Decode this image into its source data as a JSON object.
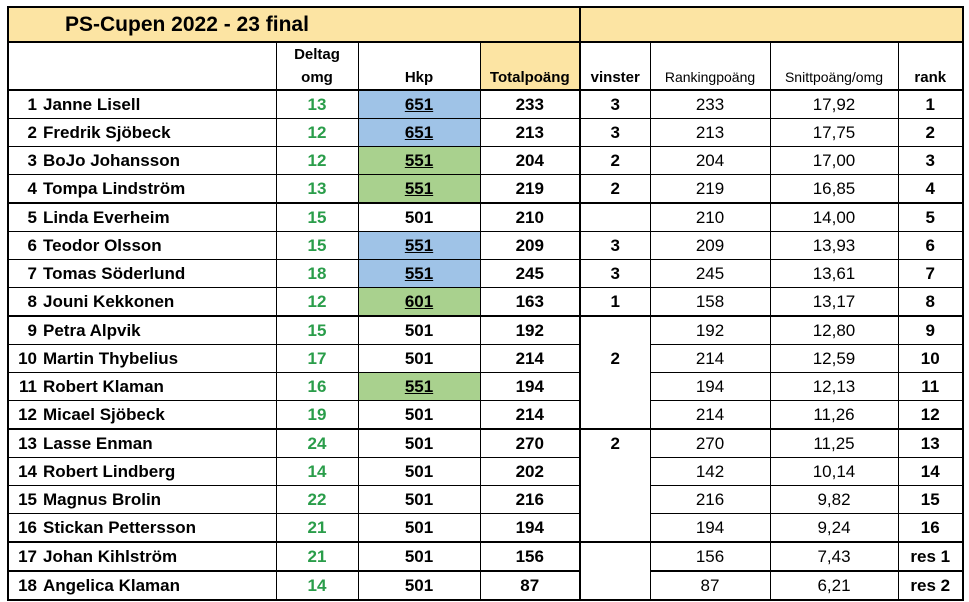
{
  "title": "PS-Cupen 2022 - 23 final",
  "headers": {
    "deltag_line1": "Deltag",
    "deltag_line2": "omg",
    "hkp": "Hkp",
    "total": "Totalpoäng",
    "vinster": "vinster",
    "ranking": "Rankingpoäng",
    "snitt": "Snittpoäng/omg",
    "rank": "rank"
  },
  "rows": [
    {
      "num": "1",
      "name": "Janne Lisell",
      "omg": "13",
      "hkp": "651",
      "total": "233",
      "vinster": "3",
      "ranking": "233",
      "snitt": "17,92",
      "rank": "1"
    },
    {
      "num": "2",
      "name": "Fredrik Sjöbeck",
      "omg": "12",
      "hkp": "651",
      "total": "213",
      "vinster": "3",
      "ranking": "213",
      "snitt": "17,75",
      "rank": "2"
    },
    {
      "num": "3",
      "name": "BoJo Johansson",
      "omg": "12",
      "hkp": "551",
      "total": "204",
      "vinster": "2",
      "ranking": "204",
      "snitt": "17,00",
      "rank": "3"
    },
    {
      "num": "4",
      "name": "Tompa Lindström",
      "omg": "13",
      "hkp": "551",
      "total": "219",
      "vinster": "2",
      "ranking": "219",
      "snitt": "16,85",
      "rank": "4"
    },
    {
      "num": "5",
      "name": "Linda Everheim",
      "omg": "15",
      "hkp": "501",
      "total": "210",
      "vinster": "",
      "ranking": "210",
      "snitt": "14,00",
      "rank": "5"
    },
    {
      "num": "6",
      "name": "Teodor Olsson",
      "omg": "15",
      "hkp": "551",
      "total": "209",
      "vinster": "3",
      "ranking": "209",
      "snitt": "13,93",
      "rank": "6"
    },
    {
      "num": "7",
      "name": "Tomas Söderlund",
      "omg": "18",
      "hkp": "551",
      "total": "245",
      "vinster": "3",
      "ranking": "245",
      "snitt": "13,61",
      "rank": "7"
    },
    {
      "num": "8",
      "name": "Jouni Kekkonen",
      "omg": "12",
      "hkp": "601",
      "total": "163",
      "vinster": "1",
      "ranking": "158",
      "snitt": "13,17",
      "rank": "8"
    },
    {
      "num": "9",
      "name": "Petra Alpvik",
      "omg": "15",
      "hkp": "501",
      "total": "192",
      "vinster": "",
      "ranking": "192",
      "snitt": "12,80",
      "rank": "9"
    },
    {
      "num": "10",
      "name": "Martin Thybelius",
      "omg": "17",
      "hkp": "501",
      "total": "214",
      "vinster": "2",
      "ranking": "214",
      "snitt": "12,59",
      "rank": "10"
    },
    {
      "num": "11",
      "name": "Robert Klaman",
      "omg": "16",
      "hkp": "551",
      "total": "194",
      "vinster": "",
      "ranking": "194",
      "snitt": "12,13",
      "rank": "11"
    },
    {
      "num": "12",
      "name": "Micael Sjöbeck",
      "omg": "19",
      "hkp": "501",
      "total": "214",
      "vinster": "",
      "ranking": "214",
      "snitt": "11,26",
      "rank": "12"
    },
    {
      "num": "13",
      "name": "Lasse Enman",
      "omg": "24",
      "hkp": "501",
      "total": "270",
      "vinster": "2",
      "ranking": "270",
      "snitt": "11,25",
      "rank": "13"
    },
    {
      "num": "14",
      "name": "Robert Lindberg",
      "omg": "14",
      "hkp": "501",
      "total": "202",
      "vinster": "",
      "ranking": "142",
      "snitt": "10,14",
      "rank": "14"
    },
    {
      "num": "15",
      "name": "Magnus Brolin",
      "omg": "22",
      "hkp": "501",
      "total": "216",
      "vinster": "",
      "ranking": "216",
      "snitt": "9,82",
      "rank": "15"
    },
    {
      "num": "16",
      "name": "Stickan Pettersson",
      "omg": "21",
      "hkp": "501",
      "total": "194",
      "vinster": "",
      "ranking": "194",
      "snitt": "9,24",
      "rank": "16"
    },
    {
      "num": "17",
      "name": "Johan Kihlström",
      "omg": "21",
      "hkp": "501",
      "total": "156",
      "vinster": "",
      "ranking": "156",
      "snitt": "7,43",
      "rank": "res 1"
    },
    {
      "num": "18",
      "name": "Angelica Klaman",
      "omg": "14",
      "hkp": "501",
      "total": "87",
      "vinster": "",
      "ranking": "87",
      "snitt": "6,21",
      "rank": "res 2"
    }
  ],
  "colors": {
    "title_bg": "#fce4a3",
    "hkp_blue": "#9fc3e7",
    "hkp_green": "#a9d18e",
    "omg_text": "#2a9d4a"
  }
}
